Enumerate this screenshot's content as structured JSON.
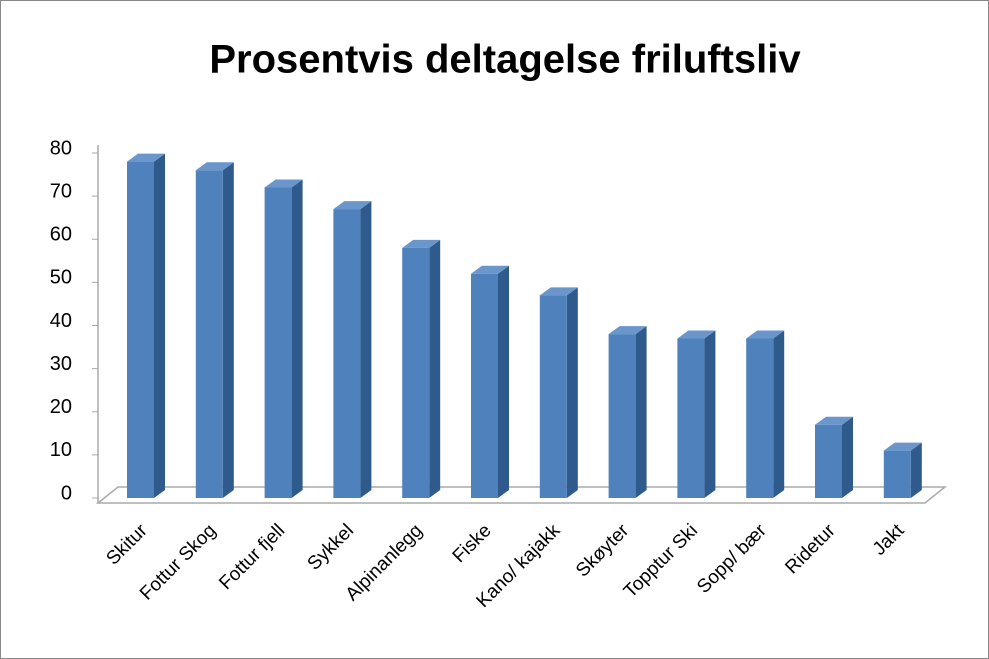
{
  "chart_data": {
    "type": "bar3d",
    "title": "Prosentvis deltagelse friluftsliv",
    "categories": [
      "Skitur",
      "Fottur Skog",
      "Fottur fjell",
      "Sykkel",
      "Alpinanlegg",
      "Fiske",
      "Kano/ kajakk",
      "Skøyter",
      "Topptur Ski",
      "Sopp/ bær",
      "Ridetur",
      "Jakt"
    ],
    "values": [
      78,
      76,
      72,
      67,
      58,
      52,
      47,
      38,
      37,
      37,
      17,
      11
    ],
    "color": "#4f81bd",
    "ylim": [
      0,
      80
    ],
    "yticks": [
      0,
      10,
      20,
      30,
      40,
      50,
      60,
      70,
      80
    ]
  }
}
